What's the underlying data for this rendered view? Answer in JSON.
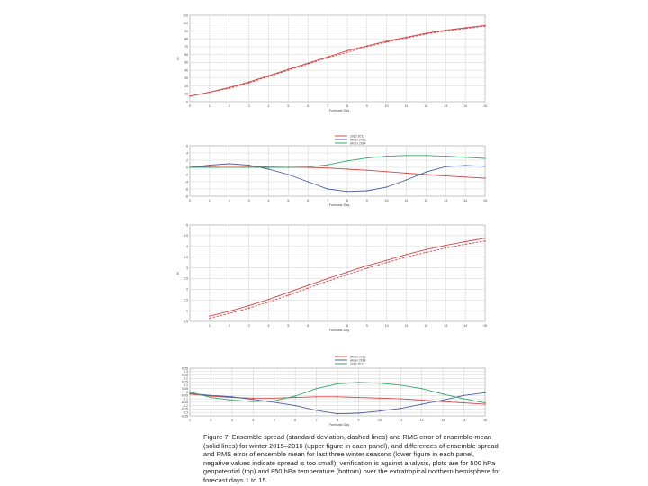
{
  "colors": {
    "red": "#d64545",
    "blue": "#4d5fa0",
    "green": "#37a868",
    "grid": "#c7c7c7",
    "axis": "#999999",
    "tick_text": "#444444"
  },
  "chart_data": [
    {
      "type": "line",
      "panel": "z500-scores",
      "xlabel": "Forecast Day",
      "ylabel": "m",
      "xlim": [
        0,
        15
      ],
      "ylim": [
        0,
        110
      ],
      "xticks": [
        0,
        1,
        2,
        3,
        4,
        5,
        6,
        7,
        8,
        9,
        10,
        11,
        12,
        13,
        14,
        15
      ],
      "yticks": [
        0,
        10,
        20,
        30,
        40,
        50,
        60,
        70,
        80,
        90,
        100,
        110
      ],
      "x": [
        0,
        1,
        2,
        3,
        4,
        5,
        6,
        7,
        8,
        9,
        10,
        11,
        12,
        13,
        14,
        15
      ],
      "series": [
        {
          "style": "solid",
          "color": "#d64545",
          "values": [
            7,
            12,
            18,
            25,
            33,
            41,
            49,
            57,
            65,
            71,
            77,
            82,
            87,
            91,
            94,
            97
          ]
        },
        {
          "style": "dashed",
          "color": "#d64545",
          "values": [
            7,
            12,
            17,
            24,
            32,
            40,
            48,
            56,
            63,
            70,
            76,
            81,
            86,
            90,
            93,
            96
          ]
        }
      ]
    },
    {
      "type": "line",
      "panel": "z500-differences",
      "xlabel": "Forecast Day",
      "xlim": [
        0,
        15
      ],
      "ylim": [
        -8,
        6
      ],
      "xticks": [
        0,
        1,
        2,
        3,
        4,
        5,
        6,
        7,
        8,
        9,
        10,
        11,
        12,
        13,
        14,
        15
      ],
      "yticks": [
        6,
        4,
        2,
        0,
        -2,
        -4,
        -6,
        -8
      ],
      "legend": {
        "position": "top-center"
      },
      "x": [
        0,
        1,
        2,
        3,
        4,
        5,
        6,
        7,
        8,
        9,
        10,
        11,
        12,
        13,
        14,
        15
      ],
      "series": [
        {
          "name": "2012-2013",
          "color": "#d64545",
          "values": [
            0,
            0.3,
            0.4,
            0.3,
            0.1,
            0,
            0,
            -0.2,
            -0.5,
            -0.8,
            -1.2,
            -1.6,
            -2,
            -2.4,
            -2.7,
            -3
          ]
        },
        {
          "name": "winter 2013",
          "color": "#4d5fa0",
          "values": [
            0,
            0.6,
            1,
            0.6,
            -0.5,
            -2,
            -4,
            -6,
            -6.7,
            -6.5,
            -5.5,
            -3.5,
            -1.3,
            0.2,
            0.5,
            0.3
          ]
        },
        {
          "name": "winter 2014",
          "color": "#37a868",
          "values": [
            0,
            0,
            0,
            0,
            0,
            0,
            0.1,
            0.7,
            1.8,
            2.6,
            3.1,
            3.3,
            3.3,
            3.1,
            2.8,
            2.5
          ]
        }
      ]
    },
    {
      "type": "line",
      "panel": "t850-scores",
      "xlabel": "Forecast Day",
      "ylabel": "K",
      "xlim": [
        0,
        15
      ],
      "ylim": [
        0.5,
        5
      ],
      "xticks": [
        1,
        2,
        3,
        4,
        5,
        6,
        7,
        8,
        9,
        10,
        11,
        12,
        13,
        14,
        15
      ],
      "yticks": [
        0.5,
        1,
        1.5,
        2,
        2.5,
        3,
        3.5,
        4,
        4.5,
        5
      ],
      "x": [
        1,
        2,
        3,
        4,
        5,
        6,
        7,
        8,
        9,
        10,
        11,
        12,
        13,
        14,
        15
      ],
      "series": [
        {
          "style": "solid",
          "color": "#d64545",
          "values": [
            0.75,
            0.97,
            1.23,
            1.52,
            1.85,
            2.18,
            2.5,
            2.8,
            3.1,
            3.35,
            3.62,
            3.85,
            4.05,
            4.22,
            4.38
          ]
        },
        {
          "style": "dashed",
          "color": "#d64545",
          "values": [
            0.65,
            0.87,
            1.12,
            1.4,
            1.72,
            2.05,
            2.38,
            2.68,
            2.98,
            3.25,
            3.5,
            3.72,
            3.92,
            4.1,
            4.25
          ]
        }
      ]
    },
    {
      "type": "line",
      "panel": "t850-differences",
      "xlabel": "Forecast Day",
      "xlim": [
        1,
        15
      ],
      "ylim": [
        -0.35,
        0.35
      ],
      "xticks": [
        1,
        2,
        3,
        4,
        5,
        6,
        7,
        8,
        9,
        10,
        11,
        12,
        13,
        14,
        15
      ],
      "yticks": [
        "0.35",
        "0.3",
        "0.25",
        "0.2",
        "0.15",
        "0.1",
        "0.05",
        "0",
        "-0.05",
        "-0.1",
        "-0.15",
        "-0.2",
        "-0.25",
        "-0.3",
        "-0.35"
      ],
      "legend": {
        "position": "top-center"
      },
      "x": [
        1,
        2,
        3,
        4,
        5,
        6,
        7,
        8,
        9,
        10,
        11,
        12,
        13,
        14,
        15
      ],
      "series": [
        {
          "name": "winter 2013",
          "color": "#d64545",
          "values": [
            -0.03,
            -0.06,
            -0.08,
            -0.09,
            -0.09,
            -0.08,
            -0.07,
            -0.07,
            -0.08,
            -0.09,
            -0.1,
            -0.12,
            -0.14,
            -0.16,
            -0.18
          ]
        },
        {
          "name": "winter 2014",
          "color": "#4d5fa0",
          "values": [
            -0.02,
            -0.05,
            -0.07,
            -0.11,
            -0.15,
            -0.2,
            -0.27,
            -0.32,
            -0.31,
            -0.28,
            -0.24,
            -0.18,
            -0.12,
            -0.05,
            -0.01
          ]
        },
        {
          "name": "2012-2013",
          "color": "#37a868",
          "values": [
            0,
            -0.08,
            -0.12,
            -0.14,
            -0.13,
            -0.06,
            0.05,
            0.12,
            0.14,
            0.13,
            0.1,
            0.05,
            -0.03,
            -0.1,
            -0.16
          ]
        }
      ]
    }
  ],
  "caption": "Figure 7: Ensemble spread (standard deviation, dashed lines) and RMS error of ensemble-mean (solid lines) for winter 2015–2016 (upper figure in each panel), and differences of ensemble spread and RMS error of ensemble mean for last three winter seasons (lower figure in each panel, negative values indicate spread is too small); verification is against analysis, plots are for 500 hPa geopotential (top) and 850 hPa temperature (bottom) over the extratropical northern hemisphere for forecast days 1 to 15."
}
